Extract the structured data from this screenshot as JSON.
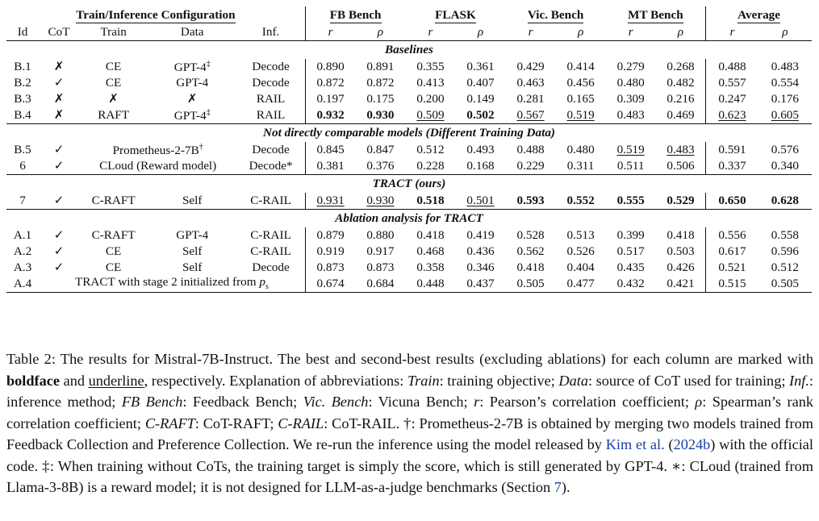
{
  "table": {
    "group_headers": {
      "config": "Train/Inference Configuration",
      "fb": "FB Bench",
      "flask": "FLASK",
      "vic": "Vic. Bench",
      "mt": "MT Bench",
      "avg": "Average"
    },
    "col_headers": {
      "id": "Id",
      "cot": "CoT",
      "train": "Train",
      "data": "Data",
      "inf": "Inf.",
      "r": "r",
      "rho": "ρ"
    },
    "sections": {
      "baselines": "Baselines",
      "not_comparable": "Not directly comparable models (Different Training Data)",
      "tract": "TRACT (ours)",
      "ablation": "Ablation analysis for TRACT"
    },
    "rows": {
      "b1": {
        "id": "B.1",
        "cot": "✗",
        "train": "CE",
        "data": "GPT-4",
        "data_sup": "‡",
        "inf": "Decode",
        "v": [
          "0.890",
          "0.891",
          "0.355",
          "0.361",
          "0.429",
          "0.414",
          "0.279",
          "0.268",
          "0.488",
          "0.483"
        ]
      },
      "b2": {
        "id": "B.2",
        "cot": "✓",
        "train": "CE",
        "data": "GPT-4",
        "inf": "Decode",
        "v": [
          "0.872",
          "0.872",
          "0.413",
          "0.407",
          "0.463",
          "0.456",
          "0.480",
          "0.482",
          "0.557",
          "0.554"
        ]
      },
      "b3": {
        "id": "B.3",
        "cot": "✗",
        "train": "✗",
        "data": "✗",
        "inf": "RAIL",
        "v": [
          "0.197",
          "0.175",
          "0.200",
          "0.149",
          "0.281",
          "0.165",
          "0.309",
          "0.216",
          "0.247",
          "0.176"
        ]
      },
      "b4": {
        "id": "B.4",
        "cot": "✗",
        "train": "RAFT",
        "data": "GPT-4",
        "data_sup": "‡",
        "inf": "RAIL",
        "v": [
          "0.932",
          "0.930",
          "0.509",
          "0.502",
          "0.567",
          "0.519",
          "0.483",
          "0.469",
          "0.623",
          "0.605"
        ]
      },
      "b5": {
        "id": "B.5",
        "cot": "✓",
        "model": "Prometheus-2-7B",
        "model_sup": "†",
        "inf": "Decode",
        "v": [
          "0.845",
          "0.847",
          "0.512",
          "0.493",
          "0.488",
          "0.480",
          "0.519",
          "0.483",
          "0.591",
          "0.576"
        ]
      },
      "r6": {
        "id": "6",
        "cot": "✓",
        "model": "CLoud (Reward model)",
        "inf": "Decode*",
        "v": [
          "0.381",
          "0.376",
          "0.228",
          "0.168",
          "0.229",
          "0.311",
          "0.511",
          "0.506",
          "0.337",
          "0.340"
        ]
      },
      "r7": {
        "id": "7",
        "cot": "✓",
        "train": "C-RAFT",
        "data": "Self",
        "inf": "C-RAIL",
        "v": [
          "0.931",
          "0.930",
          "0.518",
          "0.501",
          "0.593",
          "0.552",
          "0.555",
          "0.529",
          "0.650",
          "0.628"
        ]
      },
      "a1": {
        "id": "A.1",
        "cot": "✓",
        "train": "C-RAFT",
        "data": "GPT-4",
        "inf": "C-RAIL",
        "v": [
          "0.879",
          "0.880",
          "0.418",
          "0.419",
          "0.528",
          "0.513",
          "0.399",
          "0.418",
          "0.556",
          "0.558"
        ]
      },
      "a2": {
        "id": "A.2",
        "cot": "✓",
        "train": "CE",
        "data": "Self",
        "inf": "C-RAIL",
        "v": [
          "0.919",
          "0.917",
          "0.468",
          "0.436",
          "0.562",
          "0.526",
          "0.517",
          "0.503",
          "0.617",
          "0.596"
        ]
      },
      "a3": {
        "id": "A.3",
        "cot": "✓",
        "train": "CE",
        "data": "Self",
        "inf": "Decode",
        "v": [
          "0.873",
          "0.873",
          "0.358",
          "0.346",
          "0.418",
          "0.404",
          "0.435",
          "0.426",
          "0.521",
          "0.512"
        ]
      },
      "a4": {
        "id": "A.4",
        "desc": "TRACT with stage 2 initialized from ",
        "desc_math": "p",
        "desc_sub": "s",
        "v": [
          "0.674",
          "0.684",
          "0.448",
          "0.437",
          "0.505",
          "0.477",
          "0.432",
          "0.421",
          "0.515",
          "0.505"
        ]
      }
    }
  },
  "caption": {
    "lead": "Table 2: The results for Mistral-7B-Instruct. The best and second-best results (excluding ablations) for each column are marked with ",
    "bold_word": "boldface",
    "and": " and ",
    "under_word": "underline",
    "after_marks": ", respectively. Explanation of abbreviations: ",
    "k_train": "Train",
    "v_train": ": training objective; ",
    "k_data": "Data",
    "v_data": ": source of CoT used for training; ",
    "k_inf": "Inf.",
    "v_inf": ": inference method; ",
    "k_fb": "FB Bench",
    "v_fb": ": Feedback Bench; ",
    "k_vic": "Vic. Bench",
    "v_vic": ": Vicuna Bench; ",
    "k_r": "r",
    "v_r": ": Pearson’s correlation coefficient; ",
    "k_rho": "ρ",
    "v_rho": ": Spearman’s rank correlation coefficient; ",
    "k_craft": "C-RAFT",
    "v_craft": ": CoT-RAFT; ",
    "k_crail": "C-RAIL",
    "v_crail": ": CoT-RAIL. †: Prometheus-2-7B is obtained by merging two models trained from Feedback Collection and Preference Collection. We re-run the inference using the model released by ",
    "cite": "Kim et al.",
    "cite_open": " (",
    "cite_year": "2024b",
    "cite_close": ")",
    "tail": " with the official code. ‡: When training without CoTs, the training target is simply the score, which is still generated by GPT-4. ∗: CLoud (trained from Llama-3-8B) is a reward model; it is not designed for LLM-as-a-judge benchmarks (Section ",
    "section_ref": "7",
    "end": ").",
    "link_color": "#1a3ea8"
  }
}
